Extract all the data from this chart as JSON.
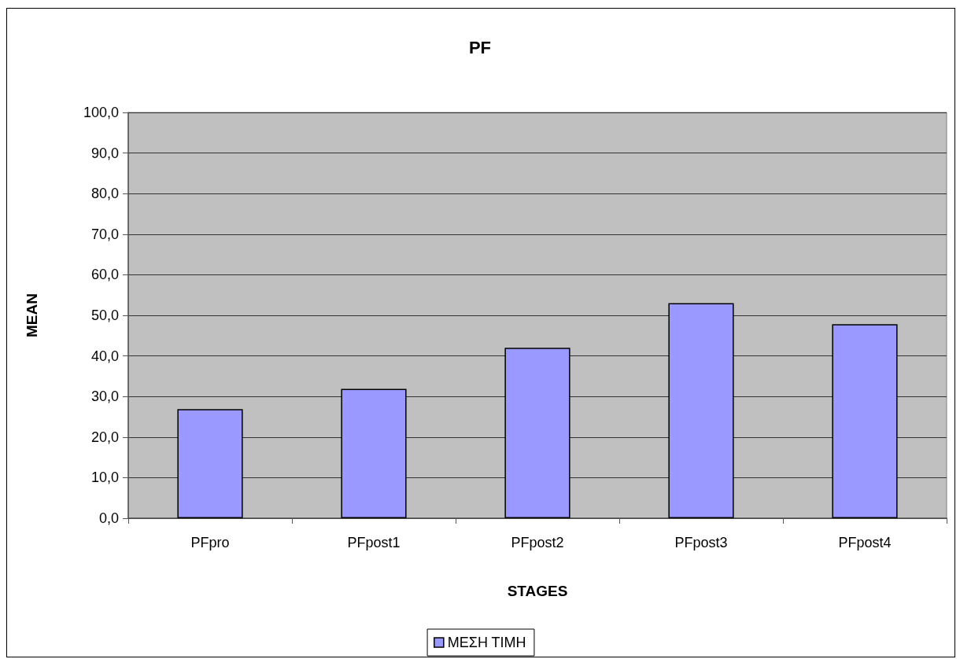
{
  "chart_data": {
    "type": "bar",
    "title": "PF",
    "xlabel": "STAGES",
    "ylabel": "MEAN",
    "categories": [
      "PFpro",
      "PFpost1",
      "PFpost2",
      "PFpost3",
      "PFpost4"
    ],
    "series": [
      {
        "name": "ΜΕΣΗ ΤΙΜΗ",
        "color": "#9999ff",
        "values": [
          26.9,
          31.9,
          42.0,
          53.0,
          47.8
        ]
      }
    ],
    "ylim": [
      0,
      100
    ],
    "yticks": [
      {
        "value": 0,
        "label": "0,0"
      },
      {
        "value": 10,
        "label": "10,0"
      },
      {
        "value": 20,
        "label": "20,0"
      },
      {
        "value": 30,
        "label": "30,0"
      },
      {
        "value": 40,
        "label": "40,0"
      },
      {
        "value": 50,
        "label": "50,0"
      },
      {
        "value": 60,
        "label": "60,0"
      },
      {
        "value": 70,
        "label": "70,0"
      },
      {
        "value": 80,
        "label": "80,0"
      },
      {
        "value": 90,
        "label": "90,0"
      },
      {
        "value": 100,
        "label": "100,0"
      }
    ],
    "grid": "y",
    "legend": "bottom"
  }
}
